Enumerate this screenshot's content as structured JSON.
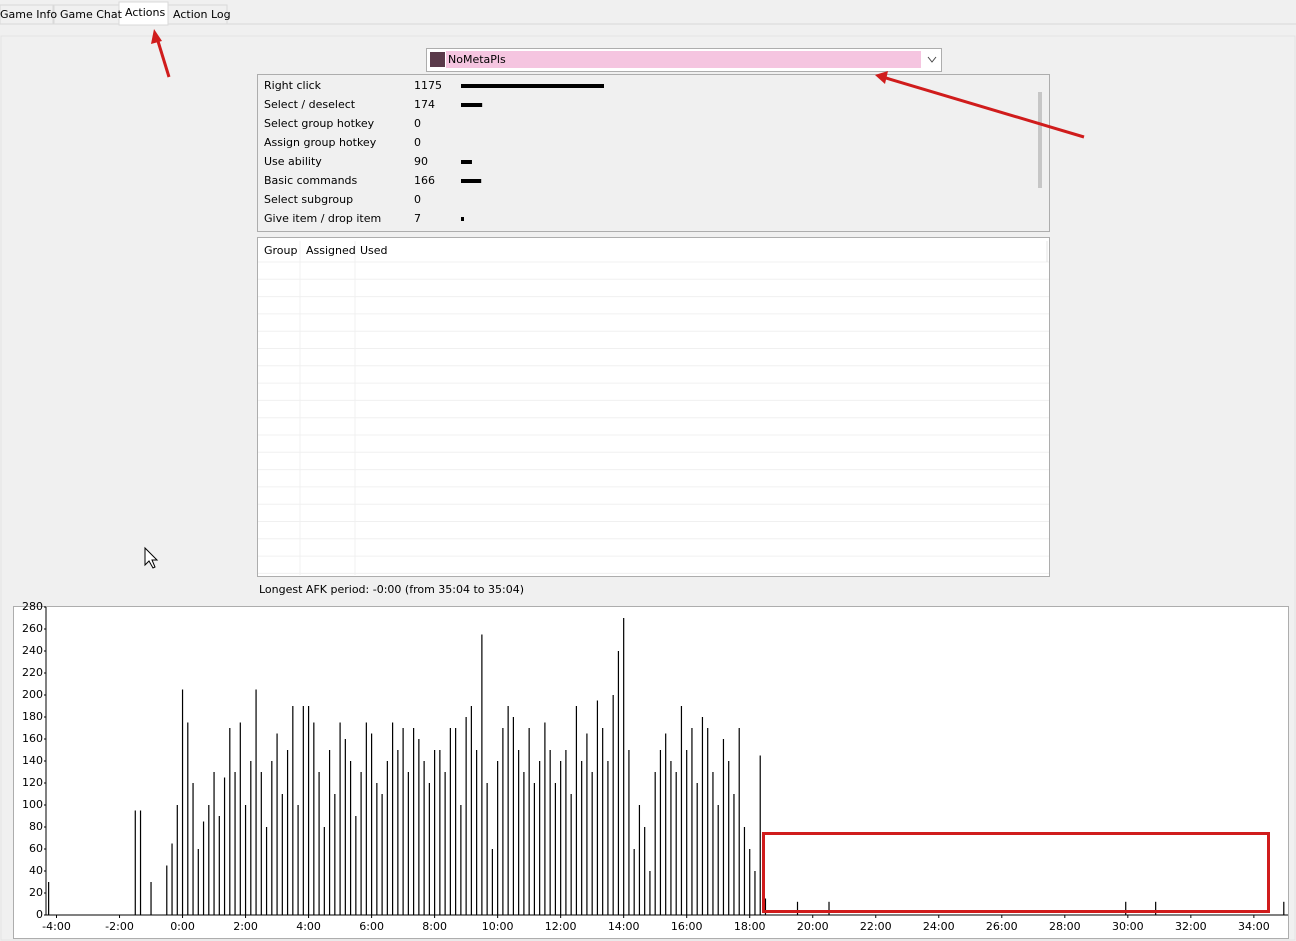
{
  "tabs": [
    "Game Info",
    "Game Chat",
    "Actions",
    "Action Log"
  ],
  "player": "NoMetaPls",
  "actions": {
    "rows": [
      {
        "label": "Right click",
        "count": 1175
      },
      {
        "label": "Select / deselect",
        "count": 174
      },
      {
        "label": "Select group hotkey",
        "count": 0
      },
      {
        "label": "Assign group hotkey",
        "count": 0
      },
      {
        "label": "Use ability",
        "count": 90
      },
      {
        "label": "Basic commands",
        "count": 166
      },
      {
        "label": "Select subgroup",
        "count": 0
      },
      {
        "label": "Give item / drop item",
        "count": 7
      }
    ]
  },
  "groups": {
    "columns": [
      "Group",
      "Assigned",
      "Used"
    ]
  },
  "afk": "Longest AFK period: -0:00 (from 35:04 to 35:04)",
  "chart_data": {
    "type": "bar",
    "color": "#000000",
    "x": [
      -255,
      -90,
      -80,
      -70,
      -60,
      -50,
      -40,
      -30,
      -20,
      -10,
      0,
      10,
      20,
      30,
      40,
      50,
      60,
      70,
      80,
      90,
      100,
      110,
      120,
      130,
      140,
      150,
      160,
      170,
      180,
      190,
      200,
      210,
      220,
      230,
      240,
      250,
      260,
      270,
      280,
      290,
      300,
      310,
      320,
      330,
      340,
      350,
      360,
      370,
      380,
      390,
      400,
      410,
      420,
      430,
      440,
      450,
      460,
      470,
      480,
      490,
      500,
      510,
      520,
      530,
      540,
      550,
      560,
      570,
      580,
      590,
      600,
      610,
      620,
      630,
      640,
      650,
      660,
      670,
      680,
      690,
      700,
      710,
      720,
      730,
      740,
      750,
      760,
      770,
      780,
      790,
      800,
      810,
      820,
      830,
      840,
      850,
      860,
      870,
      880,
      890,
      900,
      910,
      920,
      930,
      940,
      950,
      960,
      970,
      980,
      990,
      1000,
      1010,
      1020,
      1030,
      1040,
      1050,
      1060,
      1070,
      1080,
      1090,
      1100,
      1110,
      1171,
      1231,
      1796,
      1853,
      2097
    ],
    "values": [
      30,
      95,
      95,
      0,
      30,
      0,
      0,
      45,
      65,
      100,
      205,
      175,
      120,
      60,
      85,
      100,
      130,
      90,
      125,
      170,
      130,
      175,
      100,
      140,
      205,
      130,
      80,
      140,
      165,
      110,
      150,
      190,
      100,
      190,
      190,
      175,
      130,
      80,
      150,
      110,
      175,
      160,
      140,
      90,
      130,
      175,
      165,
      120,
      110,
      140,
      175,
      150,
      170,
      130,
      170,
      160,
      140,
      120,
      150,
      150,
      130,
      170,
      170,
      100,
      180,
      190,
      150,
      255,
      120,
      60,
      140,
      170,
      190,
      180,
      150,
      130,
      170,
      120,
      140,
      175,
      150,
      120,
      140,
      150,
      110,
      190,
      140,
      165,
      130,
      195,
      170,
      140,
      200,
      240,
      270,
      150,
      60,
      100,
      80,
      40,
      130,
      150,
      165,
      140,
      130,
      190,
      150,
      170,
      120,
      180,
      170,
      130,
      100,
      160,
      140,
      110,
      170,
      80,
      60,
      40,
      145,
      15,
      12,
      12,
      12,
      12,
      12
    ],
    "xlim": [
      -260,
      2105
    ],
    "ylim": [
      0,
      280
    ],
    "yticks": [
      0,
      20,
      40,
      60,
      80,
      100,
      120,
      140,
      160,
      180,
      200,
      220,
      240,
      260,
      280
    ],
    "xticks": [
      {
        "value": -240,
        "label": "-4:00"
      },
      {
        "value": -120,
        "label": "-2:00"
      },
      {
        "value": 0,
        "label": "0:00"
      },
      {
        "value": 120,
        "label": "2:00"
      },
      {
        "value": 240,
        "label": "4:00"
      },
      {
        "value": 360,
        "label": "6:00"
      },
      {
        "value": 480,
        "label": "8:00"
      },
      {
        "value": 600,
        "label": "10:00"
      },
      {
        "value": 720,
        "label": "12:00"
      },
      {
        "value": 840,
        "label": "14:00"
      },
      {
        "value": 960,
        "label": "16:00"
      },
      {
        "value": 1080,
        "label": "18:00"
      },
      {
        "value": 1200,
        "label": "20:00"
      },
      {
        "value": 1320,
        "label": "22:00"
      },
      {
        "value": 1440,
        "label": "24:00"
      },
      {
        "value": 1560,
        "label": "26:00"
      },
      {
        "value": 1680,
        "label": "28:00"
      },
      {
        "value": 1800,
        "label": "30:00"
      },
      {
        "value": 1920,
        "label": "32:00"
      },
      {
        "value": 2040,
        "label": "34:00"
      }
    ]
  }
}
